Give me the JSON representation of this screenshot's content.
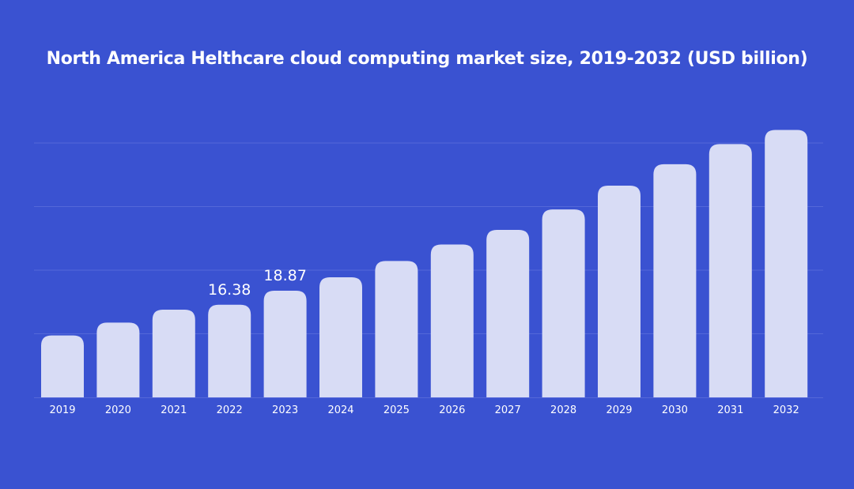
{
  "chart_data": {
    "type": "bar",
    "title": "North America Helthcare cloud computing market size, 2019-2032 (USD billion)",
    "xlabel": "",
    "ylabel": "",
    "categories": [
      "2019",
      "2020",
      "2021",
      "2022",
      "2023",
      "2024",
      "2025",
      "2026",
      "2027",
      "2028",
      "2029",
      "2030",
      "2031",
      "2032"
    ],
    "values": [
      10.95,
      13.23,
      15.51,
      16.38,
      18.87,
      21.24,
      24.13,
      27.04,
      29.63,
      33.25,
      37.46,
      41.24,
      44.8,
      47.3
    ],
    "data_labels": [
      {
        "index": 3,
        "text": "16.38"
      },
      {
        "index": 4,
        "text": "18.87"
      }
    ],
    "ylim": [
      0,
      50
    ],
    "grid": true,
    "gridlines": [
      11.25,
      22.5,
      33.75,
      45
    ],
    "colors": {
      "background": "#3a52d1",
      "bar": "#d8dcf5",
      "grid": "#5468d9",
      "text": "#ffffff"
    }
  }
}
